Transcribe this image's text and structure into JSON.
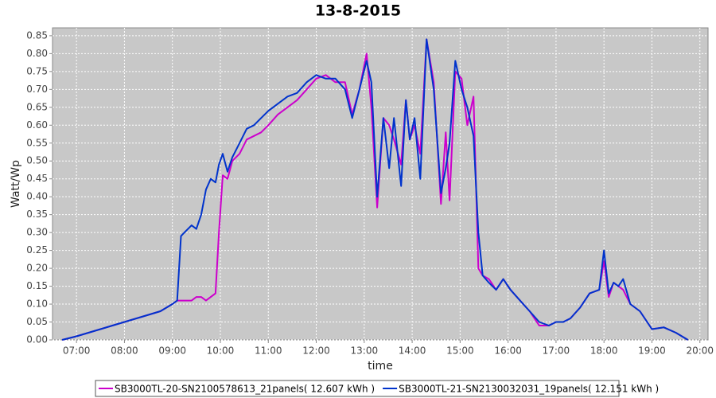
{
  "chart_data": {
    "type": "line",
    "title": "13-8-2015",
    "xlabel": "time",
    "ylabel": "Watt/Wp",
    "x": [
      6.7,
      7.0,
      7.25,
      7.5,
      7.75,
      8.0,
      8.25,
      8.5,
      8.75,
      9.0,
      9.1,
      9.18,
      9.25,
      9.4,
      9.5,
      9.6,
      9.7,
      9.8,
      9.9,
      9.97,
      10.05,
      10.15,
      10.25,
      10.4,
      10.55,
      10.7,
      10.85,
      11.0,
      11.2,
      11.4,
      11.6,
      11.8,
      12.0,
      12.2,
      12.4,
      12.6,
      12.75,
      12.9,
      13.05,
      13.15,
      13.27,
      13.4,
      13.52,
      13.62,
      13.77,
      13.87,
      13.95,
      14.05,
      14.17,
      14.3,
      14.45,
      14.6,
      14.7,
      14.78,
      14.9,
      15.03,
      15.15,
      15.28,
      15.38,
      15.47,
      15.6,
      15.75,
      15.9,
      16.05,
      16.25,
      16.45,
      16.65,
      16.85,
      17.0,
      17.15,
      17.3,
      17.5,
      17.7,
      17.9,
      18.0,
      18.1,
      18.2,
      18.3,
      18.4,
      18.55,
      18.75,
      19.0,
      19.25,
      19.5,
      19.75
    ],
    "series": [
      {
        "name": "SB3000TL-20-SN2100578613_21panels( 12.607 kWh )",
        "color": "#cc00cc",
        "values": [
          0.0,
          0.01,
          0.02,
          0.03,
          0.04,
          0.05,
          0.06,
          0.07,
          0.08,
          0.1,
          0.11,
          0.11,
          0.11,
          0.11,
          0.12,
          0.12,
          0.11,
          0.12,
          0.13,
          0.3,
          0.46,
          0.45,
          0.5,
          0.52,
          0.56,
          0.57,
          0.58,
          0.6,
          0.63,
          0.65,
          0.67,
          0.7,
          0.73,
          0.74,
          0.72,
          0.72,
          0.63,
          0.7,
          0.8,
          0.65,
          0.37,
          0.62,
          0.6,
          0.56,
          0.49,
          0.67,
          0.56,
          0.6,
          0.52,
          0.84,
          0.72,
          0.38,
          0.58,
          0.39,
          0.75,
          0.73,
          0.6,
          0.68,
          0.2,
          0.18,
          0.17,
          0.14,
          0.17,
          0.14,
          0.11,
          0.08,
          0.04,
          0.04,
          0.05,
          0.05,
          0.06,
          0.09,
          0.13,
          0.14,
          0.22,
          0.12,
          0.16,
          0.15,
          0.14,
          0.1,
          0.08,
          0.03,
          0.035,
          0.02,
          0.0
        ]
      },
      {
        "name": "SB3000TL-21-SN2130032031_19panels( 12.151 kWh )",
        "color": "#0033cc",
        "values": [
          0.0,
          0.01,
          0.02,
          0.03,
          0.04,
          0.05,
          0.06,
          0.07,
          0.08,
          0.1,
          0.11,
          0.29,
          0.3,
          0.32,
          0.31,
          0.35,
          0.42,
          0.45,
          0.44,
          0.49,
          0.52,
          0.47,
          0.51,
          0.55,
          0.59,
          0.6,
          0.62,
          0.64,
          0.66,
          0.68,
          0.69,
          0.72,
          0.74,
          0.73,
          0.73,
          0.7,
          0.62,
          0.7,
          0.78,
          0.72,
          0.4,
          0.62,
          0.48,
          0.62,
          0.43,
          0.67,
          0.56,
          0.62,
          0.45,
          0.84,
          0.7,
          0.41,
          0.48,
          0.55,
          0.78,
          0.7,
          0.65,
          0.57,
          0.3,
          0.18,
          0.16,
          0.14,
          0.17,
          0.14,
          0.11,
          0.08,
          0.05,
          0.04,
          0.05,
          0.05,
          0.06,
          0.09,
          0.13,
          0.14,
          0.25,
          0.13,
          0.16,
          0.15,
          0.17,
          0.1,
          0.08,
          0.03,
          0.035,
          0.02,
          0.0
        ]
      }
    ],
    "xlim": [
      6.5,
      20.17
    ],
    "ylim": [
      0,
      0.872
    ],
    "xticks": [
      {
        "value": 7,
        "label": "07:00"
      },
      {
        "value": 8,
        "label": "08:00"
      },
      {
        "value": 9,
        "label": "09:00"
      },
      {
        "value": 10,
        "label": "10:00"
      },
      {
        "value": 11,
        "label": "11:00"
      },
      {
        "value": 12,
        "label": "12:00"
      },
      {
        "value": 13,
        "label": "13:00"
      },
      {
        "value": 14,
        "label": "14:00"
      },
      {
        "value": 15,
        "label": "15:00"
      },
      {
        "value": 16,
        "label": "16:00"
      },
      {
        "value": 17,
        "label": "17:00"
      },
      {
        "value": 18,
        "label": "18:00"
      },
      {
        "value": 19,
        "label": "19:00"
      },
      {
        "value": 20,
        "label": "20:00"
      }
    ],
    "yticks": [
      {
        "value": 0,
        "label": "0.00"
      },
      0.05,
      {
        "value": 0.1,
        "label": "0.10"
      },
      0.15,
      {
        "value": 0.2,
        "label": "0.20"
      },
      0.25,
      {
        "value": 0.3,
        "label": "0.30"
      },
      0.35,
      {
        "value": 0.4,
        "label": "0.40"
      },
      0.45,
      {
        "value": 0.5,
        "label": "0.50"
      },
      0.55,
      {
        "value": 0.6,
        "label": "0.60"
      },
      0.65,
      {
        "value": 0.7,
        "label": "0.70"
      },
      0.75,
      {
        "value": 0.8,
        "label": "0.80"
      },
      0.85
    ],
    "grid": true,
    "legend": "bottom"
  }
}
